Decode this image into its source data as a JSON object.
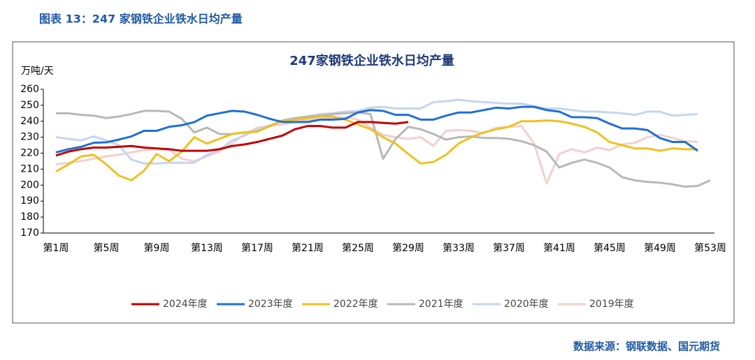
{
  "caption": "图表 13：247 家钢铁企业铁水日均产量",
  "source": "数据来源：钢联数据、国元期货",
  "chart_data": {
    "type": "line",
    "title": "247家钢铁企业铁水日均产量",
    "y_label": "万吨/天",
    "categories": [
      "第1周",
      null,
      null,
      null,
      "第5周",
      null,
      null,
      null,
      "第9周",
      null,
      null,
      null,
      "第13周",
      null,
      null,
      null,
      "第17周",
      null,
      null,
      null,
      "第21周",
      null,
      null,
      null,
      "第25周",
      null,
      null,
      null,
      "第29周",
      null,
      null,
      null,
      "第33周",
      null,
      null,
      null,
      "第37周",
      null,
      null,
      null,
      "第41周",
      null,
      null,
      null,
      "第45周",
      null,
      null,
      null,
      "第49周",
      null,
      null,
      null,
      "第53周"
    ],
    "ylim": [
      170,
      260
    ],
    "yticks": [
      170,
      180,
      190,
      200,
      210,
      220,
      230,
      240,
      250,
      260
    ],
    "legend": "bottom",
    "series": [
      {
        "name": "2024年度",
        "color": "#c00000",
        "values": [
          218.5,
          221,
          222.5,
          223.5,
          223.5,
          224,
          224.5,
          223.5,
          223,
          222.5,
          221.5,
          221.5,
          221.5,
          222.5,
          224.5,
          225.5,
          227,
          229,
          231,
          235,
          237,
          237,
          236,
          236,
          239.5,
          239.5,
          239,
          238.5,
          239.5,
          null,
          null,
          null,
          null,
          null,
          null,
          null,
          null,
          null,
          null,
          null,
          null,
          null,
          null,
          null,
          null,
          null,
          null,
          null,
          null,
          null,
          null,
          null,
          null
        ]
      },
      {
        "name": "2023年度",
        "color": "#1f6fd6",
        "values": [
          220.5,
          222.5,
          224,
          226.5,
          226.8,
          228.5,
          230.5,
          234,
          234,
          236.5,
          237.5,
          239.5,
          243.5,
          245,
          246.5,
          246,
          244,
          241.5,
          239.5,
          239.5,
          239.5,
          241,
          241,
          241.5,
          245.5,
          247,
          246.5,
          244,
          244,
          241,
          241,
          243.5,
          245.5,
          245.5,
          247,
          248.5,
          248,
          249,
          249,
          247,
          246,
          242.5,
          242.5,
          242,
          238.5,
          235.5,
          235.5,
          234.5,
          229.5,
          227,
          227,
          221.5,
          null
        ]
      },
      {
        "name": "2022年度",
        "color": "#f0c020",
        "values": [
          208.5,
          213,
          218,
          219,
          213,
          206,
          203,
          209,
          219.5,
          215,
          221,
          230,
          226,
          229,
          232,
          233,
          233.5,
          237,
          240,
          241,
          242,
          243,
          243,
          241,
          238,
          235,
          230,
          226,
          219.5,
          213.5,
          214.5,
          219,
          226,
          230,
          233,
          235,
          236.5,
          240,
          240,
          240.5,
          240,
          238.5,
          236.5,
          233,
          227,
          225,
          223,
          223,
          221.5,
          223,
          222.5,
          222.5,
          null
        ]
      },
      {
        "name": "2021年度",
        "color": "#b8b8b8",
        "values": [
          245,
          245,
          244,
          243.5,
          242,
          243,
          244.5,
          246.5,
          246.5,
          246,
          241.5,
          233,
          236,
          232,
          232,
          233,
          233.5,
          237,
          240.5,
          242,
          243,
          243.5,
          244.5,
          245,
          245.5,
          244.5,
          216.5,
          229,
          236.5,
          235,
          232,
          228.5,
          230,
          230.5,
          229.5,
          229.5,
          229,
          227.5,
          225,
          221,
          211,
          214,
          216,
          214,
          211,
          205,
          203,
          202,
          201.5,
          200.5,
          199,
          199.5,
          203
        ]
      },
      {
        "name": "2020年度",
        "color": "#c5d5f0",
        "values": [
          230,
          229,
          228,
          230.5,
          228,
          225,
          216,
          213.5,
          213.5,
          214,
          214,
          214,
          219,
          222,
          228,
          231,
          235,
          237.5,
          240,
          241.5,
          243,
          244.5,
          245,
          246,
          246.5,
          248.5,
          249,
          248,
          248,
          248,
          252,
          252.5,
          253.5,
          252.5,
          252,
          251.5,
          251,
          251,
          249.5,
          248,
          248,
          247,
          246,
          246,
          245.5,
          245,
          244,
          246,
          246,
          243.5,
          244,
          244.5,
          null
        ]
      },
      {
        "name": "2019年度",
        "color": "#f2d0d0",
        "values": [
          213,
          214,
          215,
          216.5,
          218,
          219,
          220.5,
          222,
          222.5,
          222,
          216.5,
          215,
          218,
          221,
          226,
          232,
          236,
          237,
          238,
          239.5,
          241,
          241.5,
          242,
          242.5,
          241,
          236,
          231.5,
          230,
          229,
          230,
          224.5,
          234,
          234.5,
          234,
          232.5,
          236,
          236.5,
          237,
          226,
          201,
          219.5,
          222.5,
          220.5,
          223.5,
          222,
          225.5,
          226.5,
          230,
          231.5,
          229.5,
          227.5,
          227,
          null
        ]
      }
    ]
  }
}
